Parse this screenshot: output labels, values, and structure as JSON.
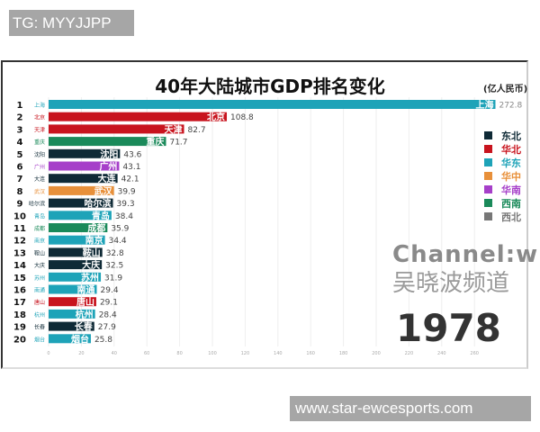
{
  "watermark_top": "TG: MYYJJPP",
  "watermark_bottom": "www.star-ewcesports.com",
  "logo": {
    "channel": "Channel:wu",
    "chinese": "吴晓波频道"
  },
  "year": "1978",
  "colors": {
    "东北": "#0f2a36",
    "华北": "#c8141e",
    "华东": "#1ea3b8",
    "华中": "#e8903a",
    "华南": "#a63fc9",
    "西南": "#1a8a5a",
    "西北": "#777777"
  },
  "chart_data": {
    "type": "bar",
    "orientation": "horizontal",
    "title": "40年大陆城市GDP排名变化",
    "unit": "(亿人民币)",
    "xlim": [
      0,
      280
    ],
    "xticks": [
      0,
      20,
      40,
      60,
      80,
      100,
      120,
      140,
      160,
      180,
      200,
      220,
      240,
      260
    ],
    "grid": true,
    "legend_position": "right",
    "legend": [
      "东北",
      "华北",
      "华东",
      "华中",
      "华南",
      "西南",
      "西北"
    ],
    "ranks": [
      1,
      2,
      3,
      4,
      5,
      6,
      7,
      8,
      9,
      10,
      11,
      12,
      13,
      14,
      15,
      16,
      17,
      18,
      19,
      20
    ],
    "categories": [
      "上海",
      "北京",
      "天津",
      "重庆",
      "沈阳",
      "广州",
      "大连",
      "武汉",
      "哈尔滨",
      "青岛",
      "成都",
      "南京",
      "鞍山",
      "大庆",
      "苏州",
      "南通",
      "唐山",
      "杭州",
      "长春",
      "烟台"
    ],
    "regions": [
      "华东",
      "华北",
      "华北",
      "西南",
      "东北",
      "华南",
      "东北",
      "华中",
      "东北",
      "华东",
      "西南",
      "华东",
      "东北",
      "东北",
      "华东",
      "华东",
      "华北",
      "华东",
      "东北",
      "华东"
    ],
    "values": [
      272.8,
      108.8,
      82.7,
      71.7,
      43.6,
      43.1,
      42.1,
      39.9,
      39.3,
      38.4,
      35.9,
      34.4,
      32.8,
      32.5,
      31.9,
      29.4,
      29.1,
      28.4,
      27.9,
      25.8
    ]
  }
}
